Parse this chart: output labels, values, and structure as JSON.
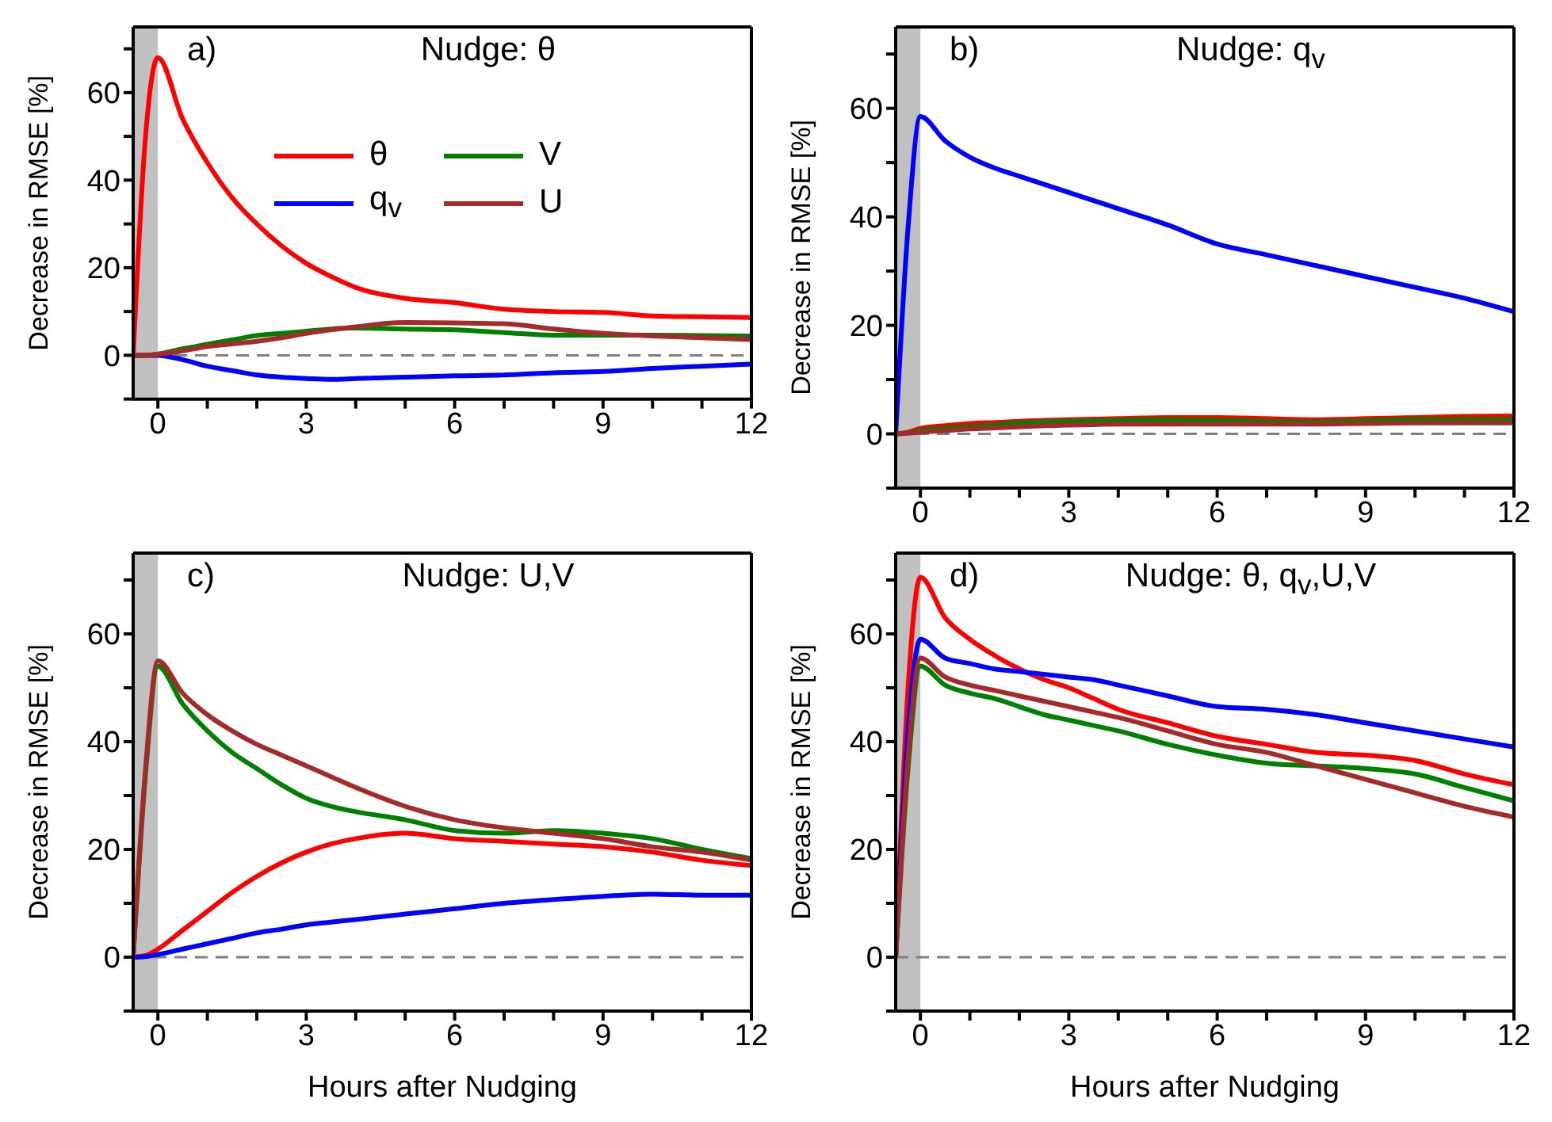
{
  "chart_data": [
    {
      "type": "line",
      "title": "Nudge: θ",
      "annotations": [
        "a)"
      ],
      "ylabel": "Decrease in RMSE [%]",
      "legend": "top",
      "x": [
        -0.5,
        -0.25,
        0,
        0.5,
        1,
        1.5,
        2,
        2.5,
        3,
        3.5,
        4,
        5,
        6,
        7,
        8,
        9,
        10,
        11,
        12
      ],
      "xlim": [
        -0.5,
        12
      ],
      "ylim": [
        -10,
        75
      ],
      "xticks": [
        0,
        {
          "value": 1,
          "label": null
        },
        {
          "value": 2,
          "label": null
        },
        3,
        {
          "value": 4,
          "label": null
        },
        {
          "value": 5,
          "label": null
        },
        6,
        {
          "value": 7,
          "label": null
        },
        {
          "value": 8,
          "label": null
        },
        9,
        {
          "value": 10,
          "label": null
        },
        {
          "value": 11,
          "label": null
        },
        12
      ],
      "yticks": [
        {
          "value": -10,
          "label": null
        },
        0,
        {
          "value": 10,
          "label": null
        },
        20,
        {
          "value": 30,
          "label": null
        },
        40,
        {
          "value": 50,
          "label": null
        },
        60,
        {
          "value": 70,
          "label": null
        }
      ],
      "bands": [
        {
          "axis": "x",
          "from": -0.5,
          "to": 0,
          "color": "#c0c0c0"
        }
      ],
      "ref_lines": [
        {
          "axis": "y",
          "value": 0,
          "color": "#808080",
          "line_style": "dashed"
        }
      ],
      "series": [
        {
          "name": "θ",
          "color": "#ff0000",
          "values": [
            0,
            50,
            68,
            54,
            44,
            36,
            30,
            25,
            21,
            18,
            15.5,
            13,
            12,
            10.5,
            10,
            9.8,
            9,
            8.8,
            8.6
          ]
        },
        {
          "name": "q$_{v}$",
          "color": "#0000ff",
          "values": [
            0,
            0,
            0,
            -1,
            -2.5,
            -3.5,
            -4.5,
            -5,
            -5.3,
            -5.5,
            -5.3,
            -5,
            -4.7,
            -4.5,
            -4,
            -3.7,
            -3,
            -2.5,
            -2
          ]
        },
        {
          "name": "V",
          "color": "#008000",
          "values": [
            0,
            0,
            0.3,
            1.5,
            2.5,
            3.5,
            4.5,
            5,
            5.5,
            6,
            6.2,
            6,
            5.8,
            5.2,
            4.6,
            4.6,
            4.6,
            4.5,
            4.4
          ]
        },
        {
          "name": "U",
          "color": "#a52a2a",
          "values": [
            0,
            0,
            0.2,
            1,
            2,
            2.6,
            3.2,
            4,
            5,
            5.8,
            6.5,
            7.5,
            7.4,
            7.2,
            6,
            5,
            4.4,
            4,
            3.6
          ]
        }
      ]
    },
    {
      "type": "line",
      "title": "Nudge: q$_{v}$",
      "annotations": [
        "b)"
      ],
      "ylabel": "Decrease in RMSE [%]",
      "x": [
        -0.5,
        -0.25,
        0,
        0.5,
        1,
        1.5,
        2,
        2.5,
        3,
        3.5,
        4,
        5,
        6,
        7,
        8,
        9,
        10,
        11,
        12
      ],
      "xlim": [
        -0.5,
        12
      ],
      "ylim": [
        -10,
        75
      ],
      "xticks": [
        0,
        {
          "value": 1,
          "label": null
        },
        {
          "value": 2,
          "label": null
        },
        3,
        {
          "value": 4,
          "label": null
        },
        {
          "value": 5,
          "label": null
        },
        6,
        {
          "value": 7,
          "label": null
        },
        {
          "value": 8,
          "label": null
        },
        9,
        {
          "value": 10,
          "label": null
        },
        {
          "value": 11,
          "label": null
        },
        12
      ],
      "yticks": [
        {
          "value": -10,
          "label": null
        },
        0,
        {
          "value": 10,
          "label": null
        },
        20,
        {
          "value": 30,
          "label": null
        },
        40,
        {
          "value": 50,
          "label": null
        },
        60,
        {
          "value": 70,
          "label": null
        }
      ],
      "bands": [
        {
          "axis": "x",
          "from": -0.5,
          "to": 0,
          "color": "#c0c0c0"
        }
      ],
      "ref_lines": [
        {
          "axis": "y",
          "value": 0,
          "color": "#808080",
          "line_style": "dashed"
        }
      ],
      "series": [
        {
          "color": "#ff0000",
          "values": [
            0,
            0.3,
            1,
            1.5,
            1.9,
            2.1,
            2.3,
            2.5,
            2.6,
            2.7,
            2.8,
            3,
            3,
            2.8,
            2.6,
            2.8,
            3,
            3.2,
            3.3
          ]
        },
        {
          "color": "#0000ff",
          "values": [
            0,
            38,
            58.5,
            54,
            51,
            49,
            47.5,
            46,
            44.5,
            43,
            41.5,
            38.5,
            35,
            33,
            31,
            29,
            27,
            25,
            22.5
          ]
        },
        {
          "color": "#008000",
          "values": [
            0,
            0.2,
            0.6,
            1,
            1.3,
            1.6,
            2,
            2.2,
            2.3,
            2.4,
            2.5,
            2.6,
            2.5,
            2.3,
            2.2,
            2.4,
            2.6,
            2.6,
            2.6
          ]
        },
        {
          "color": "#a52a2a",
          "values": [
            0,
            0.1,
            0.3,
            0.6,
            0.9,
            1.1,
            1.3,
            1.5,
            1.6,
            1.7,
            1.8,
            1.8,
            1.8,
            1.8,
            1.8,
            1.9,
            2,
            2,
            2
          ]
        }
      ]
    },
    {
      "type": "line",
      "title": "Nudge: U,V",
      "annotations": [
        "c)"
      ],
      "xlabel": "Hours after Nudging",
      "ylabel": "Decrease in RMSE [%]",
      "x": [
        -0.5,
        -0.25,
        0,
        0.5,
        1,
        1.5,
        2,
        2.5,
        3,
        3.5,
        4,
        5,
        6,
        7,
        8,
        9,
        10,
        11,
        12
      ],
      "xlim": [
        -0.5,
        12
      ],
      "ylim": [
        -10,
        75
      ],
      "xticks": [
        0,
        {
          "value": 1,
          "label": null
        },
        {
          "value": 2,
          "label": null
        },
        3,
        {
          "value": 4,
          "label": null
        },
        {
          "value": 5,
          "label": null
        },
        6,
        {
          "value": 7,
          "label": null
        },
        {
          "value": 8,
          "label": null
        },
        9,
        {
          "value": 10,
          "label": null
        },
        {
          "value": 11,
          "label": null
        },
        12
      ],
      "yticks": [
        {
          "value": -10,
          "label": null
        },
        0,
        {
          "value": 10,
          "label": null
        },
        20,
        {
          "value": 30,
          "label": null
        },
        40,
        {
          "value": 50,
          "label": null
        },
        60,
        {
          "value": 70,
          "label": null
        }
      ],
      "bands": [
        {
          "axis": "x",
          "from": -0.5,
          "to": 0,
          "color": "#c0c0c0"
        }
      ],
      "ref_lines": [
        {
          "axis": "y",
          "value": 0,
          "color": "#808080",
          "line_style": "dashed"
        }
      ],
      "series": [
        {
          "color": "#ff0000",
          "values": [
            0,
            0.3,
            1.5,
            5,
            8.5,
            12,
            15,
            17.5,
            19.5,
            21,
            22,
            23,
            22,
            21.5,
            21,
            20.5,
            19.5,
            18,
            17
          ]
        },
        {
          "color": "#0000ff",
          "values": [
            0,
            0.1,
            0.5,
            1.5,
            2.5,
            3.5,
            4.5,
            5.2,
            6,
            6.5,
            7,
            8,
            9,
            10,
            10.7,
            11.3,
            11.7,
            11.5,
            11.5
          ]
        },
        {
          "color": "#008000",
          "values": [
            0,
            34,
            54,
            47,
            42,
            38,
            35,
            32,
            29.5,
            28,
            27,
            25.5,
            23.5,
            23,
            23.5,
            23,
            22,
            20,
            18.3
          ]
        },
        {
          "color": "#a52a2a",
          "values": [
            0,
            35,
            55,
            49,
            45,
            42,
            39.5,
            37.5,
            35.5,
            33.5,
            31.5,
            28,
            25.5,
            24,
            23,
            22,
            20.5,
            19.5,
            18
          ]
        }
      ]
    },
    {
      "type": "line",
      "title": "Nudge: θ, q$_{v}$,U,V",
      "annotations": [
        "d)"
      ],
      "xlabel": "Hours after Nudging",
      "ylabel": "Decrease in RMSE [%]",
      "x": [
        -0.5,
        -0.25,
        0,
        0.5,
        1,
        1.5,
        2,
        2.5,
        3,
        3.5,
        4,
        5,
        6,
        7,
        8,
        9,
        10,
        11,
        12
      ],
      "xlim": [
        -0.5,
        12
      ],
      "ylim": [
        -10,
        75
      ],
      "xticks": [
        0,
        {
          "value": 1,
          "label": null
        },
        {
          "value": 2,
          "label": null
        },
        3,
        {
          "value": 4,
          "label": null
        },
        {
          "value": 5,
          "label": null
        },
        6,
        {
          "value": 7,
          "label": null
        },
        {
          "value": 8,
          "label": null
        },
        9,
        {
          "value": 10,
          "label": null
        },
        {
          "value": 11,
          "label": null
        },
        12
      ],
      "yticks": [
        {
          "value": -10,
          "label": null
        },
        0,
        {
          "value": 10,
          "label": null
        },
        20,
        {
          "value": 30,
          "label": null
        },
        40,
        {
          "value": 50,
          "label": null
        },
        60,
        {
          "value": 70,
          "label": null
        }
      ],
      "bands": [
        {
          "axis": "x",
          "from": -0.5,
          "to": 0,
          "color": "#c0c0c0"
        }
      ],
      "ref_lines": [
        {
          "axis": "y",
          "value": 0,
          "color": "#808080",
          "line_style": "dashed"
        }
      ],
      "series": [
        {
          "color": "#ff0000",
          "values": [
            0,
            50,
            70.5,
            63,
            59,
            56,
            53.5,
            51.5,
            50,
            48,
            46,
            43.5,
            41,
            39.5,
            38,
            37.5,
            36.5,
            34,
            32
          ]
        },
        {
          "color": "#0000ff",
          "values": [
            0,
            42,
            59,
            55.5,
            54.5,
            53.5,
            53,
            52.5,
            52,
            51.5,
            50.5,
            48.5,
            46.5,
            46,
            45,
            43.5,
            42,
            40.5,
            39
          ]
        },
        {
          "color": "#008000",
          "values": [
            0,
            35,
            54,
            50.5,
            49,
            48,
            46.5,
            45,
            44,
            43,
            42,
            39.5,
            37.5,
            36,
            35.5,
            35,
            34,
            31.5,
            29
          ]
        },
        {
          "color": "#a52a2a",
          "values": [
            0,
            37,
            55.5,
            52,
            50.5,
            49.5,
            48.5,
            47.5,
            46.5,
            45.5,
            44.5,
            42,
            39.5,
            38,
            35.5,
            33,
            30.5,
            28,
            26
          ]
        }
      ]
    }
  ]
}
